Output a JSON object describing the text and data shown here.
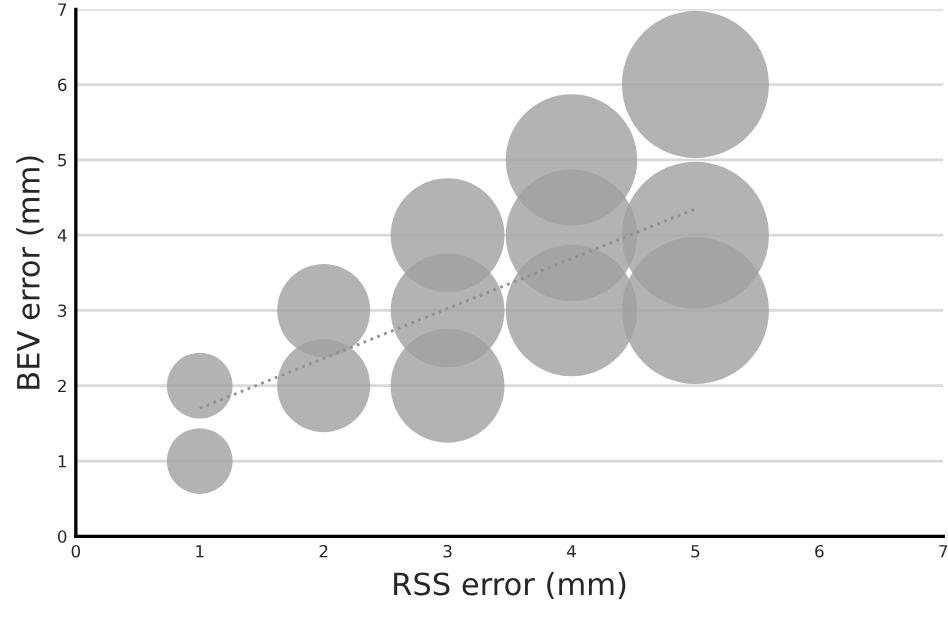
{
  "chart_data": {
    "type": "bubble",
    "xlabel": "RSS error (mm)",
    "ylabel": "BEV error (mm)",
    "xlim": [
      0,
      7
    ],
    "ylim": [
      0,
      7
    ],
    "xticks": [
      0,
      1,
      2,
      3,
      4,
      5,
      6,
      7
    ],
    "yticks": [
      0,
      1,
      2,
      3,
      4,
      5,
      6,
      7
    ],
    "grid": "y",
    "legend": false,
    "series": [
      {
        "color": "#a0a0a0",
        "x": [
          1,
          1,
          2,
          2,
          3,
          3,
          3,
          4,
          4,
          4,
          5,
          5,
          5
        ],
        "values": [
          1,
          2,
          2,
          3,
          2,
          3,
          4,
          3,
          4,
          5,
          3,
          4,
          6
        ],
        "sizes": [
          0.2,
          0.2,
          0.4,
          0.4,
          0.6,
          0.6,
          0.6,
          0.8,
          0.8,
          0.8,
          1,
          1,
          1
        ]
      },
      {
        "type": "line",
        "color": "#909090",
        "line_style": "dotted",
        "x": [
          1,
          5
        ],
        "values": [
          1.7,
          4.35
        ]
      }
    ]
  }
}
